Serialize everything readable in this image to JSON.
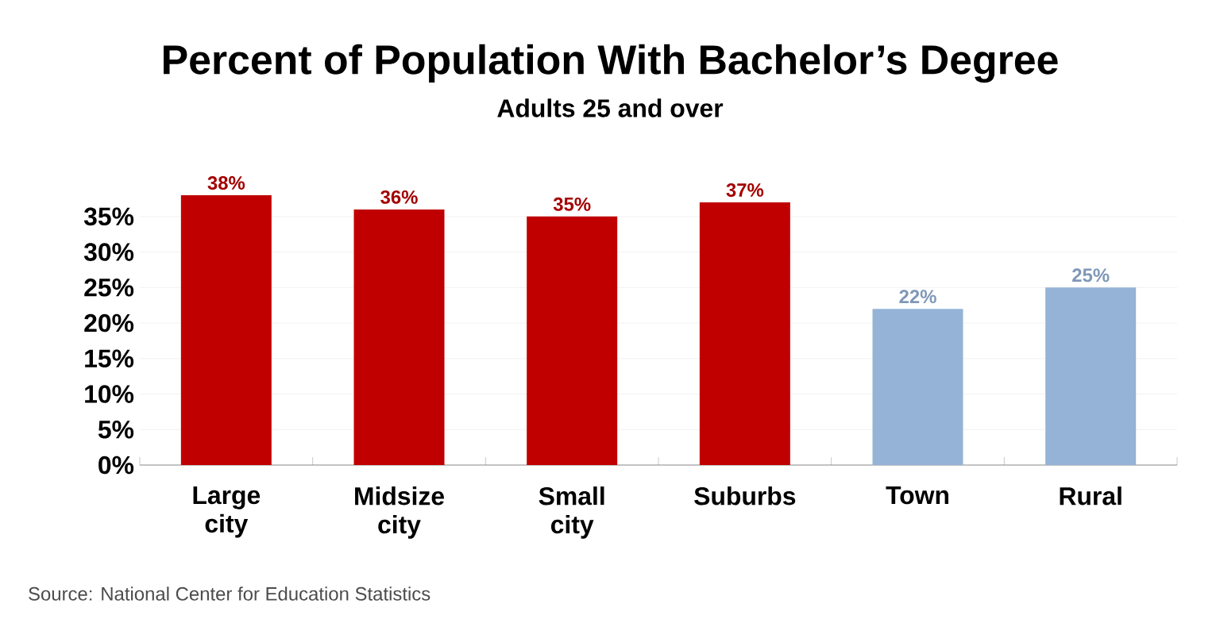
{
  "chart_data": {
    "type": "bar",
    "title": "Percent of Population With Bachelor’s Degree",
    "subtitle": "Adults 25 and over",
    "categories": [
      "Large city",
      "Midsize city",
      "Small city",
      "Suburbs",
      "Town",
      "Rural"
    ],
    "values": [
      38,
      36,
      35,
      37,
      22,
      25
    ],
    "colors": [
      "#c00000",
      "#c00000",
      "#c00000",
      "#c00000",
      "#95b3d7",
      "#95b3d7"
    ],
    "value_labels": [
      "38%",
      "36%",
      "35%",
      "37%",
      "22%",
      "25%"
    ],
    "ylim": [
      0,
      38
    ],
    "yticks": [
      {
        "value": 0,
        "label": "0%"
      },
      {
        "value": 5,
        "label": "5%"
      },
      {
        "value": 10,
        "label": "10%"
      },
      {
        "value": 15,
        "label": "15%"
      },
      {
        "value": 20,
        "label": "20%"
      },
      {
        "value": 25,
        "label": "25%"
      },
      {
        "value": 30,
        "label": "30%"
      },
      {
        "value": 35,
        "label": "35%"
      }
    ],
    "grid": "y",
    "annotations": [
      "Source: National Center for Education Statistics"
    ]
  }
}
